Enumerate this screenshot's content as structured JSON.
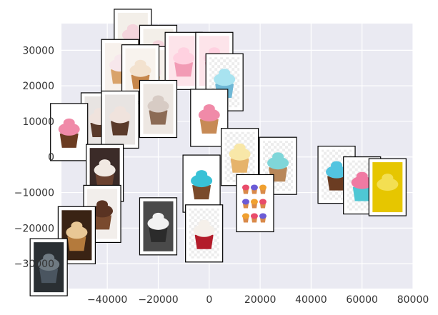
{
  "chart_data": {
    "type": "scatter",
    "title": "",
    "xlabel": "",
    "ylabel": "",
    "xlim": [
      -58000,
      80000
    ],
    "ylim": [
      -37000,
      37500
    ],
    "xticks": [
      -40000,
      -20000,
      0,
      20000,
      40000,
      60000,
      80000
    ],
    "xtick_labels": [
      "−40000",
      "−20000",
      "0",
      "20000",
      "40000",
      "60000",
      "80000"
    ],
    "yticks": [
      -30000,
      -20000,
      -10000,
      0,
      10000,
      20000,
      30000
    ],
    "ytick_labels": [
      "−30000",
      "−20000",
      "−10000",
      "0",
      "10000",
      "20000",
      "30000"
    ],
    "grid": true,
    "markers": "image thumbnails of cupcakes",
    "points": [
      {
        "x": -30000,
        "y": 33500,
        "image": "cupcake-frosting-photo"
      },
      {
        "x": -20000,
        "y": 29000,
        "image": "cupcake-frosting-photo"
      },
      {
        "x": -35000,
        "y": 25000,
        "image": "cupcake-sprinkles-photo"
      },
      {
        "x": -23000,
        "y": 23000,
        "image": "cupcake-sprinkles-photo"
      },
      {
        "x": -10000,
        "y": 27000,
        "image": "pink-cupcake-illustration"
      },
      {
        "x": 2000,
        "y": 27000,
        "image": "pink-cupcake-illustration"
      },
      {
        "x": 6000,
        "y": 21000,
        "image": "blue-cupcake-photo"
      },
      {
        "x": -27000,
        "y": 23500,
        "image": "cupcake-caramel-photo"
      },
      {
        "x": -43000,
        "y": 10000,
        "image": "chocolate-cupcakes-photo"
      },
      {
        "x": -35000,
        "y": 10500,
        "image": "chocolate-cupcakes-photo"
      },
      {
        "x": -20000,
        "y": 13500,
        "image": "cupcake-tray-photo"
      },
      {
        "x": 0,
        "y": 11000,
        "image": "pink-frosted-cupcake-photo"
      },
      {
        "x": -55000,
        "y": 7000,
        "image": "tall-chocolate-cupcake-illustration"
      },
      {
        "x": -41000,
        "y": -4500,
        "image": "chocolate-cupcakes-row-photo"
      },
      {
        "x": -3000,
        "y": -7500,
        "image": "blue-frosted-cupcake-illustration"
      },
      {
        "x": 12000,
        "y": 0,
        "image": "lemon-cupcake-illustration"
      },
      {
        "x": 27000,
        "y": -2500,
        "image": "mint-cupcake-illustration"
      },
      {
        "x": 18000,
        "y": -13000,
        "image": "cupcake-collection-illustration"
      },
      {
        "x": 50000,
        "y": -5000,
        "image": "blue-cupcake-illustration"
      },
      {
        "x": 60000,
        "y": -8000,
        "image": "pink-cupcake-cherry-illustration"
      },
      {
        "x": 70000,
        "y": -8500,
        "image": "yellow-background-photo"
      },
      {
        "x": -42000,
        "y": -16000,
        "image": "chocolate-frosted-cupcake-photo"
      },
      {
        "x": -20000,
        "y": -19500,
        "image": "dark-cupcakes-photo"
      },
      {
        "x": -2000,
        "y": -21500,
        "image": "red-velvet-cupcake-illustration"
      },
      {
        "x": -52000,
        "y": -22000,
        "image": "caramel-cupcake-photo"
      },
      {
        "x": -63000,
        "y": -31000,
        "image": "dark-scene-photo"
      }
    ]
  }
}
